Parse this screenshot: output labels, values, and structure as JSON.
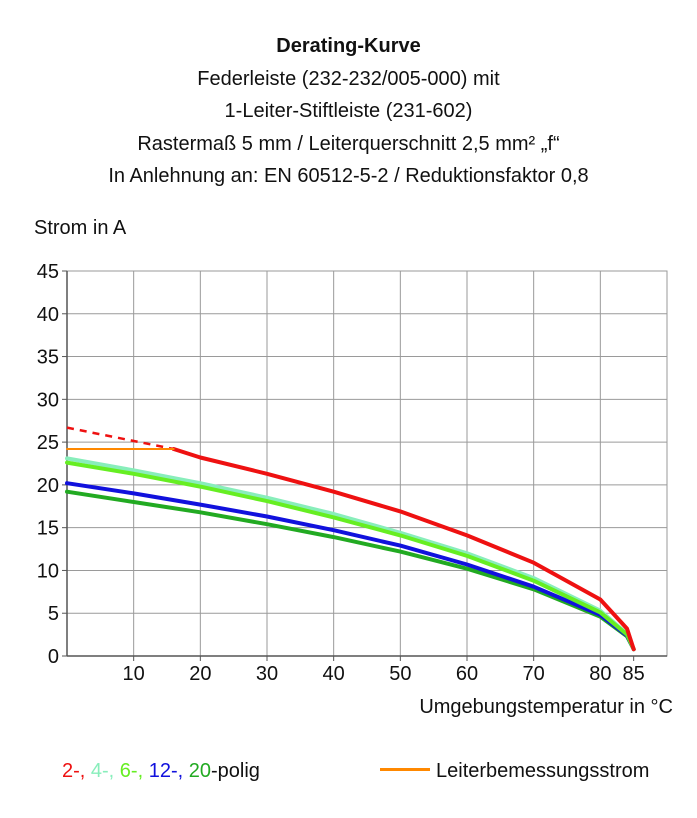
{
  "chart_data": {
    "type": "line",
    "title": "Derating-Kurve",
    "subtitle_lines": [
      "Federleiste (232-232/005-000) mit",
      "1-Leiter-Stiftleiste (231-602)",
      "Rastermaß 5 mm / Leiterquerschnitt 2,5 mm² „f“",
      "In Anlehnung an: EN 60512-5-2 / Reduktionsfaktor 0,8"
    ],
    "ylabel": "Strom in A",
    "xlabel": "Umgebungstemperatur in °C",
    "xlim": [
      0,
      90
    ],
    "ylim": [
      0,
      45
    ],
    "x_ticks": [
      10,
      20,
      30,
      40,
      50,
      60,
      70,
      80,
      85
    ],
    "y_ticks": [
      0,
      5,
      10,
      15,
      20,
      25,
      30,
      35,
      40,
      45
    ],
    "grid": true,
    "series": [
      {
        "name": "2-",
        "color": "#ee1111",
        "dashed_points": [
          [
            0,
            26.7
          ],
          [
            16,
            24.2
          ]
        ],
        "points": [
          [
            16,
            24.2
          ],
          [
            20,
            23.2
          ],
          [
            30,
            21.3
          ],
          [
            40,
            19.2
          ],
          [
            50,
            16.9
          ],
          [
            60,
            14.1
          ],
          [
            70,
            10.9
          ],
          [
            80,
            6.6
          ],
          [
            84,
            3.2
          ],
          [
            85,
            0.8
          ]
        ]
      },
      {
        "name": "4-",
        "color": "#88eebb",
        "points": [
          [
            0,
            23.1
          ],
          [
            10,
            21.7
          ],
          [
            20,
            20.2
          ],
          [
            30,
            18.5
          ],
          [
            40,
            16.6
          ],
          [
            50,
            14.4
          ],
          [
            60,
            12.0
          ],
          [
            70,
            9.1
          ],
          [
            80,
            5.3
          ],
          [
            84,
            2.6
          ],
          [
            85,
            0.8
          ]
        ]
      },
      {
        "name": "6-",
        "color": "#66ee22",
        "points": [
          [
            0,
            22.6
          ],
          [
            10,
            21.3
          ],
          [
            20,
            19.8
          ],
          [
            30,
            18.1
          ],
          [
            40,
            16.2
          ],
          [
            50,
            14.1
          ],
          [
            60,
            11.7
          ],
          [
            70,
            8.8
          ],
          [
            80,
            5.1
          ],
          [
            84,
            2.5
          ],
          [
            85,
            0.8
          ]
        ]
      },
      {
        "name": "12-",
        "color": "#1111dd",
        "points": [
          [
            0,
            20.2
          ],
          [
            10,
            19.0
          ],
          [
            20,
            17.7
          ],
          [
            30,
            16.3
          ],
          [
            40,
            14.7
          ],
          [
            50,
            12.9
          ],
          [
            60,
            10.7
          ],
          [
            70,
            8.1
          ],
          [
            80,
            4.8
          ],
          [
            84,
            2.4
          ],
          [
            85,
            0.8
          ]
        ]
      },
      {
        "name": "20",
        "color": "#22aa22",
        "points": [
          [
            0,
            19.2
          ],
          [
            10,
            18.0
          ],
          [
            20,
            16.8
          ],
          [
            30,
            15.4
          ],
          [
            40,
            13.9
          ],
          [
            50,
            12.2
          ],
          [
            60,
            10.2
          ],
          [
            70,
            7.8
          ],
          [
            80,
            4.6
          ],
          [
            84,
            2.3
          ],
          [
            85,
            0.8
          ]
        ]
      },
      {
        "name": "Leiterbemessungsstrom",
        "color": "#ff8800",
        "points": [
          [
            0,
            24.2
          ],
          [
            16,
            24.2
          ]
        ]
      }
    ],
    "legend": {
      "left_items": [
        {
          "text": "2-,",
          "color": "#ee1111"
        },
        {
          "text": " 4-,",
          "color": "#88eebb"
        },
        {
          "text": " 6-,",
          "color": "#66ee22"
        },
        {
          "text": " 12-,",
          "color": "#1111dd"
        },
        {
          "text": " 20",
          "color": "#22aa22"
        },
        {
          "text": "-polig",
          "color": "#111111"
        }
      ],
      "right_item": {
        "text": "Leiterbemessungsstrom",
        "color": "#ff8800"
      }
    }
  }
}
